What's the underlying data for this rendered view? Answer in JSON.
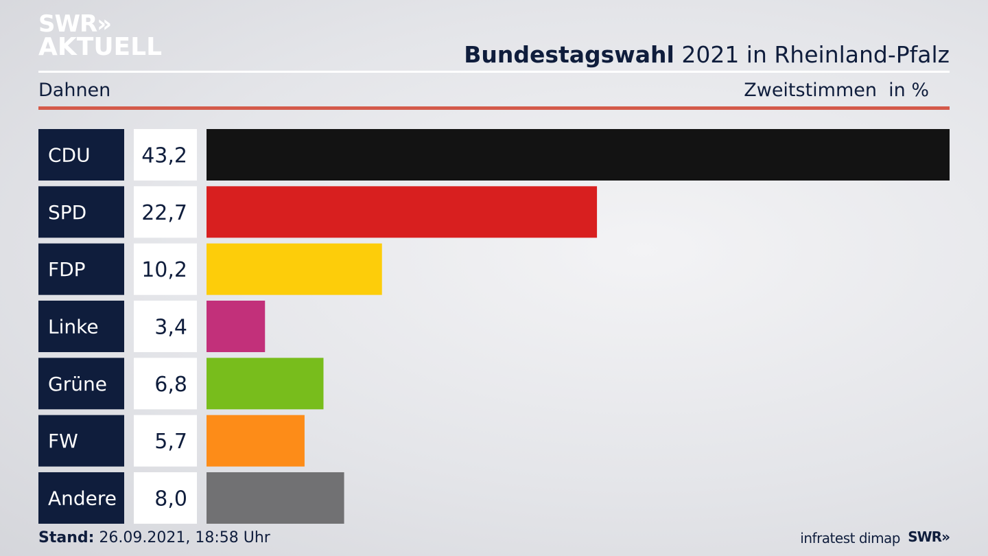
{
  "header": {
    "logo_line1": "SWR»",
    "logo_line2": "AKTUELL",
    "title_bold": "Bundestagswahl",
    "title_rest": " 2021 in Rheinland-Pfalz",
    "place": "Dahnen",
    "metric": "Zweitstimmen",
    "unit": "in %"
  },
  "footer": {
    "stand_label": "Stand:",
    "stand_value": " 26.09.2021, 18:58 Uhr",
    "source": "infratest dimap",
    "logo": "SWR»"
  },
  "chart_data": {
    "type": "bar",
    "orientation": "horizontal",
    "categories": [
      "CDU",
      "SPD",
      "FDP",
      "Linke",
      "Grüne",
      "FW",
      "Andere"
    ],
    "values": [
      43.2,
      22.7,
      10.2,
      3.4,
      6.8,
      5.7,
      8.0
    ],
    "value_labels": [
      "43,2",
      "22,7",
      "10,2",
      "3,4",
      "6,8",
      "5,7",
      "8,0"
    ],
    "colors": [
      "#131313",
      "#d81f1f",
      "#fdcd0a",
      "#c2307a",
      "#78bd1c",
      "#fd8c18",
      "#717173"
    ],
    "label_box_color": "#0f1d3c",
    "xlim": [
      0,
      43.2
    ],
    "grid": false,
    "legend": "none"
  }
}
